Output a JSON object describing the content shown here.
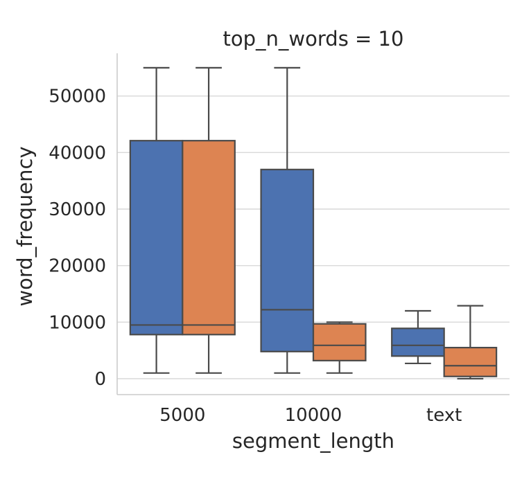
{
  "chart_data": {
    "type": "box",
    "title": "top_n_words = 10",
    "xlabel": "segment_length",
    "ylabel": "word_frequency",
    "categories": [
      "5000",
      "10000",
      "text"
    ],
    "ylim": [
      -3000,
      57500
    ],
    "yticks": [
      0,
      10000,
      20000,
      30000,
      40000,
      50000
    ],
    "grid": true,
    "legend": "none",
    "series": [
      {
        "color": "#4c72b0",
        "boxes": [
          {
            "whislo": 1000,
            "q1": 7800,
            "med": 9500,
            "q3": 42100,
            "whishi": 55000
          },
          {
            "whislo": 1000,
            "q1": 4800,
            "med": 12200,
            "q3": 37000,
            "whishi": 55000
          },
          {
            "whislo": 2700,
            "q1": 4000,
            "med": 5900,
            "q3": 8900,
            "whishi": 12000
          }
        ]
      },
      {
        "color": "#dd8452",
        "boxes": [
          {
            "whislo": 1000,
            "q1": 7800,
            "med": 9500,
            "q3": 42100,
            "whishi": 55000
          },
          {
            "whislo": 1000,
            "q1": 3200,
            "med": 5900,
            "q3": 9700,
            "whishi": 10000
          },
          {
            "whislo": 0,
            "q1": 400,
            "med": 2300,
            "q3": 5500,
            "whishi": 12900
          }
        ]
      }
    ]
  }
}
